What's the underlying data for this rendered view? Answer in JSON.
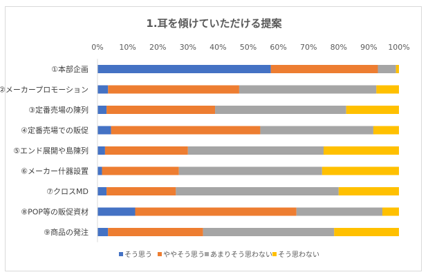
{
  "chart_data": {
    "type": "bar",
    "orientation": "horizontal",
    "stacked": "percent",
    "title": "1.耳を傾けていただける提案",
    "categories": [
      "①本部企画",
      "②メーカープロモーション",
      "③定番売場の陳列",
      "④定番売場での販促",
      "⑤エンド展開や島陳列",
      "⑥メーカー什器設置",
      "⑦クロスMD",
      "⑧POP等の販促資材",
      "⑨商品の発注"
    ],
    "series": [
      {
        "name": "そう思う",
        "color": "#4472C4",
        "values": [
          57.5,
          3.5,
          3,
          4.5,
          2.5,
          1.5,
          3,
          12.5,
          3.5
        ]
      },
      {
        "name": "ややそう思う",
        "color": "#ED7D31",
        "values": [
          35.5,
          43.5,
          36,
          49.5,
          27.5,
          25.5,
          23,
          53.5,
          31.5
        ]
      },
      {
        "name": "あまりそう思わない",
        "color": "#A5A5A5",
        "values": [
          6,
          45.5,
          43.5,
          37.5,
          45,
          47.5,
          54,
          28.5,
          43.5
        ]
      },
      {
        "name": "そう思わない",
        "color": "#FFC000",
        "values": [
          1,
          7.5,
          17.5,
          8.5,
          25,
          25.5,
          20,
          5.5,
          21.5
        ]
      }
    ],
    "x_ticks": [
      "0%",
      "10%",
      "20%",
      "30%",
      "40%",
      "50%",
      "60%",
      "70%",
      "80%",
      "90%",
      "100%"
    ],
    "xlim": [
      0,
      100
    ],
    "x_axis_position": "top",
    "grid": false,
    "legend": "bottom"
  }
}
